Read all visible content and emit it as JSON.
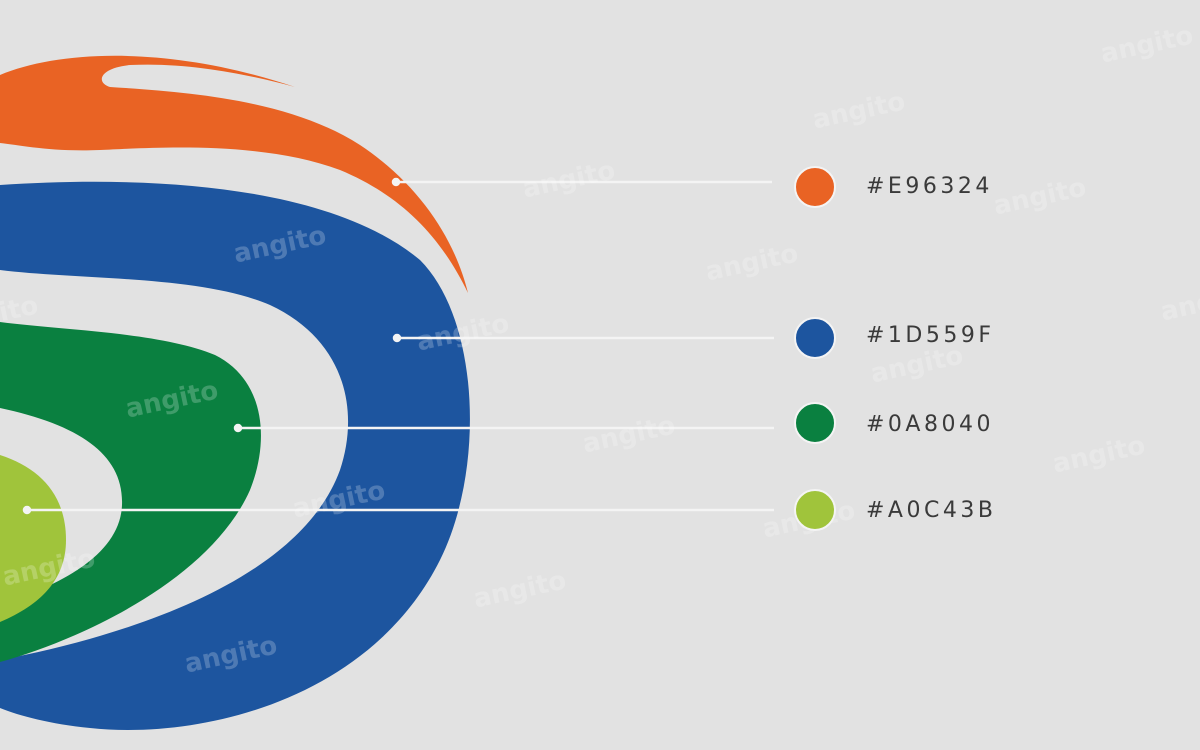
{
  "palette": [
    {
      "name": "orange",
      "hex_label": "#E96324",
      "color": "#E96324"
    },
    {
      "name": "blue",
      "hex_label": "#1D559F",
      "color": "#1D559F"
    },
    {
      "name": "green",
      "hex_label": "#0A8040",
      "color": "#0A8040"
    },
    {
      "name": "lime",
      "hex_label": "#A0C43B",
      "color": "#A0C43B"
    }
  ],
  "watermark": "angito",
  "background_color": "#E2E2E2"
}
